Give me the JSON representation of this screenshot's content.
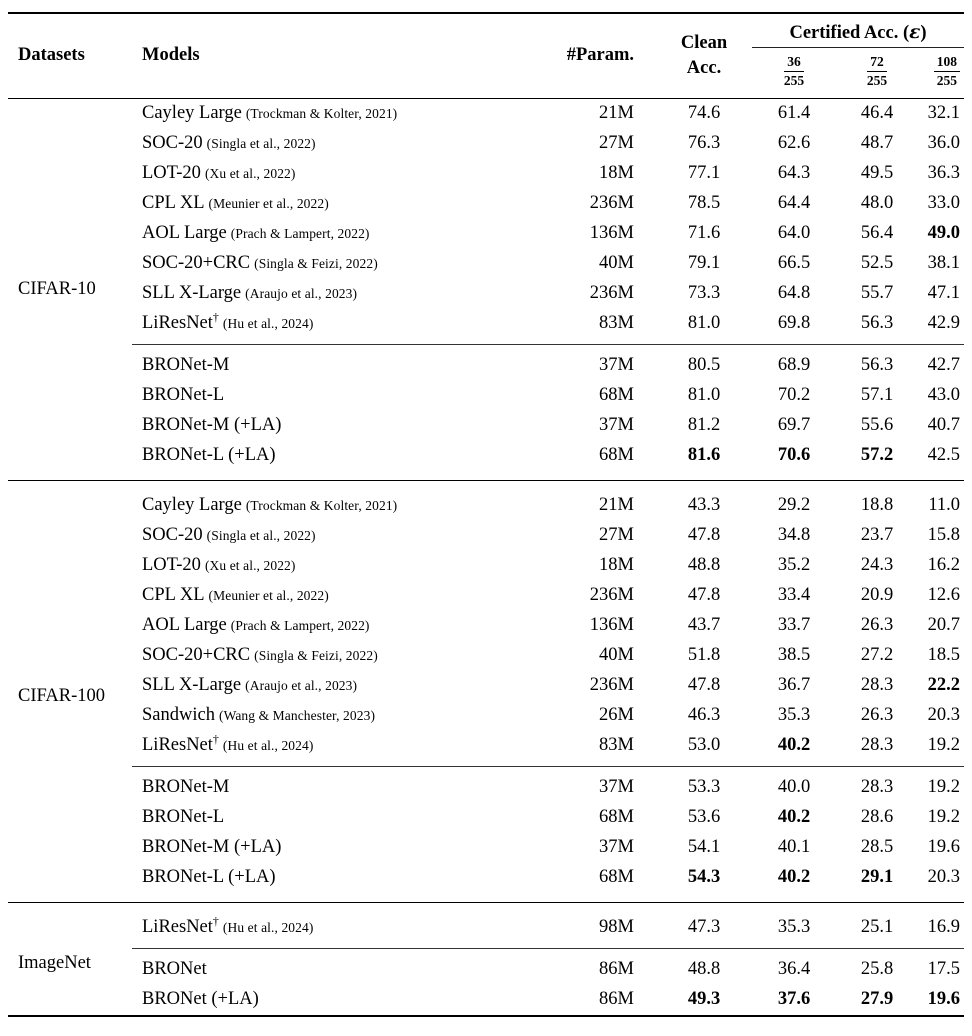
{
  "table": {
    "headers": {
      "datasets": "Datasets",
      "models": "Models",
      "param": "#Param.",
      "clean_line1": "Clean",
      "clean_line2": "Acc.",
      "certified_prefix": "Certified Acc. (",
      "certified_epsilon": "ε",
      "certified_suffix": ")",
      "eps": [
        {
          "num": "36",
          "den": "255"
        },
        {
          "num": "72",
          "den": "255"
        },
        {
          "num": "108",
          "den": "255"
        }
      ]
    },
    "groups": [
      {
        "dataset": "CIFAR-10",
        "baselines": [
          {
            "model": "Cayley Large",
            "cite": "(Trockman & Kolter, 2021)",
            "param": "21M",
            "clean": "74.6",
            "e36": "61.4",
            "e72": "46.4",
            "e108": "32.1",
            "bold": []
          },
          {
            "model": "SOC-20",
            "cite": "(Singla et al., 2022)",
            "param": "27M",
            "clean": "76.3",
            "e36": "62.6",
            "e72": "48.7",
            "e108": "36.0",
            "bold": []
          },
          {
            "model": "LOT-20",
            "cite": "(Xu et al., 2022)",
            "param": "18M",
            "clean": "77.1",
            "e36": "64.3",
            "e72": "49.5",
            "e108": "36.3",
            "bold": []
          },
          {
            "model": "CPL XL",
            "cite": "(Meunier et al., 2022)",
            "param": "236M",
            "clean": "78.5",
            "e36": "64.4",
            "e72": "48.0",
            "e108": "33.0",
            "bold": []
          },
          {
            "model": "AOL Large",
            "cite": "(Prach & Lampert, 2022)",
            "param": "136M",
            "clean": "71.6",
            "e36": "64.0",
            "e72": "56.4",
            "e108": "49.0",
            "bold": [
              "e108"
            ]
          },
          {
            "model": "SOC-20+CRC",
            "cite": "(Singla & Feizi, 2022)",
            "param": "40M",
            "clean": "79.1",
            "e36": "66.5",
            "e72": "52.5",
            "e108": "38.1",
            "bold": []
          },
          {
            "model": "SLL X-Large",
            "cite": "(Araujo et al., 2023)",
            "param": "236M",
            "clean": "73.3",
            "e36": "64.8",
            "e72": "55.7",
            "e108": "47.1",
            "bold": []
          },
          {
            "model": "LiResNet",
            "dagger": "†",
            "cite": "(Hu et al., 2024)",
            "param": "83M",
            "clean": "81.0",
            "e36": "69.8",
            "e72": "56.3",
            "e108": "42.9",
            "bold": []
          }
        ],
        "ours": [
          {
            "model": "BRONet-M",
            "param": "37M",
            "clean": "80.5",
            "e36": "68.9",
            "e72": "56.3",
            "e108": "42.7",
            "bold": []
          },
          {
            "model": "BRONet-L",
            "param": "68M",
            "clean": "81.0",
            "e36": "70.2",
            "e72": "57.1",
            "e108": "43.0",
            "bold": []
          },
          {
            "model": "BRONet-M (+LA)",
            "param": "37M",
            "clean": "81.2",
            "e36": "69.7",
            "e72": "55.6",
            "e108": "40.7",
            "bold": []
          },
          {
            "model": "BRONet-L (+LA)",
            "param": "68M",
            "clean": "81.6",
            "e36": "70.6",
            "e72": "57.2",
            "e108": "42.5",
            "bold": [
              "clean",
              "e36",
              "e72"
            ]
          }
        ]
      },
      {
        "dataset": "CIFAR-100",
        "baselines": [
          {
            "model": "Cayley Large",
            "cite": "(Trockman & Kolter, 2021)",
            "param": "21M",
            "clean": "43.3",
            "e36": "29.2",
            "e72": "18.8",
            "e108": "11.0",
            "bold": []
          },
          {
            "model": "SOC-20",
            "cite": "(Singla et al., 2022)",
            "param": "27M",
            "clean": "47.8",
            "e36": "34.8",
            "e72": "23.7",
            "e108": "15.8",
            "bold": []
          },
          {
            "model": "LOT-20",
            "cite": "(Xu et al., 2022)",
            "param": "18M",
            "clean": "48.8",
            "e36": "35.2",
            "e72": "24.3",
            "e108": "16.2",
            "bold": []
          },
          {
            "model": "CPL XL",
            "cite": "(Meunier et al., 2022)",
            "param": "236M",
            "clean": "47.8",
            "e36": "33.4",
            "e72": "20.9",
            "e108": "12.6",
            "bold": []
          },
          {
            "model": "AOL Large",
            "cite": "(Prach & Lampert, 2022)",
            "param": "136M",
            "clean": "43.7",
            "e36": "33.7",
            "e72": "26.3",
            "e108": "20.7",
            "bold": []
          },
          {
            "model": "SOC-20+CRC",
            "cite": "(Singla & Feizi, 2022)",
            "param": "40M",
            "clean": "51.8",
            "e36": "38.5",
            "e72": "27.2",
            "e108": "18.5",
            "bold": []
          },
          {
            "model": "SLL X-Large",
            "cite": "(Araujo et al., 2023)",
            "param": "236M",
            "clean": "47.8",
            "e36": "36.7",
            "e72": "28.3",
            "e108": "22.2",
            "bold": [
              "e108"
            ]
          },
          {
            "model": "Sandwich",
            "cite": "(Wang & Manchester, 2023)",
            "param": "26M",
            "clean": "46.3",
            "e36": "35.3",
            "e72": "26.3",
            "e108": "20.3",
            "bold": []
          },
          {
            "model": "LiResNet",
            "dagger": "†",
            "cite": "(Hu et al., 2024)",
            "param": "83M",
            "clean": "53.0",
            "e36": "40.2",
            "e72": "28.3",
            "e108": "19.2",
            "bold": [
              "e36"
            ]
          }
        ],
        "ours": [
          {
            "model": "BRONet-M",
            "param": "37M",
            "clean": "53.3",
            "e36": "40.0",
            "e72": "28.3",
            "e108": "19.2",
            "bold": []
          },
          {
            "model": "BRONet-L",
            "param": "68M",
            "clean": "53.6",
            "e36": "40.2",
            "e72": "28.6",
            "e108": "19.2",
            "bold": [
              "e36"
            ]
          },
          {
            "model": "BRONet-M (+LA)",
            "param": "37M",
            "clean": "54.1",
            "e36": "40.1",
            "e72": "28.5",
            "e108": "19.6",
            "bold": []
          },
          {
            "model": "BRONet-L (+LA)",
            "param": "68M",
            "clean": "54.3",
            "e36": "40.2",
            "e72": "29.1",
            "e108": "20.3",
            "bold": [
              "clean",
              "e36",
              "e72"
            ]
          }
        ]
      },
      {
        "dataset": "ImageNet",
        "baselines": [
          {
            "model": "LiResNet",
            "dagger": "†",
            "cite": "(Hu et al., 2024)",
            "param": "98M",
            "clean": "47.3",
            "e36": "35.3",
            "e72": "25.1",
            "e108": "16.9",
            "bold": []
          }
        ],
        "ours": [
          {
            "model": "BRONet",
            "param": "86M",
            "clean": "48.8",
            "e36": "36.4",
            "e72": "25.8",
            "e108": "17.5",
            "bold": []
          },
          {
            "model": "BRONet (+LA)",
            "param": "86M",
            "clean": "49.3",
            "e36": "37.6",
            "e72": "27.9",
            "e108": "19.6",
            "bold": [
              "clean",
              "e36",
              "e72",
              "e108"
            ]
          }
        ]
      }
    ]
  }
}
